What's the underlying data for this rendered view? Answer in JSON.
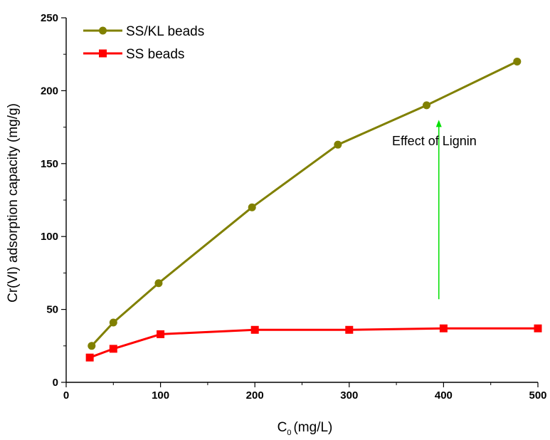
{
  "chart_data": {
    "type": "line",
    "xlabel": "C",
    "xlabel_subscript": "0",
    "xlabel_unit": "(mg/L)",
    "ylabel": "Cr(VI) adsorption capacity (mg/g)",
    "xlim": [
      0,
      500
    ],
    "ylim": [
      0,
      250
    ],
    "x_ticks": [
      0,
      100,
      200,
      300,
      400,
      500
    ],
    "y_ticks": [
      0,
      50,
      100,
      150,
      200,
      250
    ],
    "grid": false,
    "legend_position": "top-left",
    "series": [
      {
        "name": "SS/KL beads",
        "color": "#808000",
        "marker": "circle",
        "x": [
          27,
          50,
          98,
          197,
          288,
          382,
          478
        ],
        "y": [
          25,
          41,
          68,
          120,
          163,
          190,
          220
        ]
      },
      {
        "name": "SS beads",
        "color": "#ff0000",
        "marker": "square",
        "x": [
          25,
          50,
          100,
          200,
          300,
          400,
          500
        ],
        "y": [
          17,
          23,
          33,
          36,
          36,
          37,
          37
        ]
      }
    ],
    "annotations": [
      {
        "text": "Effect of Lignin",
        "arrow_x": 395,
        "arrow_y_from": 57,
        "arrow_y_to": 180,
        "arrow_color": "#00e000"
      }
    ]
  }
}
